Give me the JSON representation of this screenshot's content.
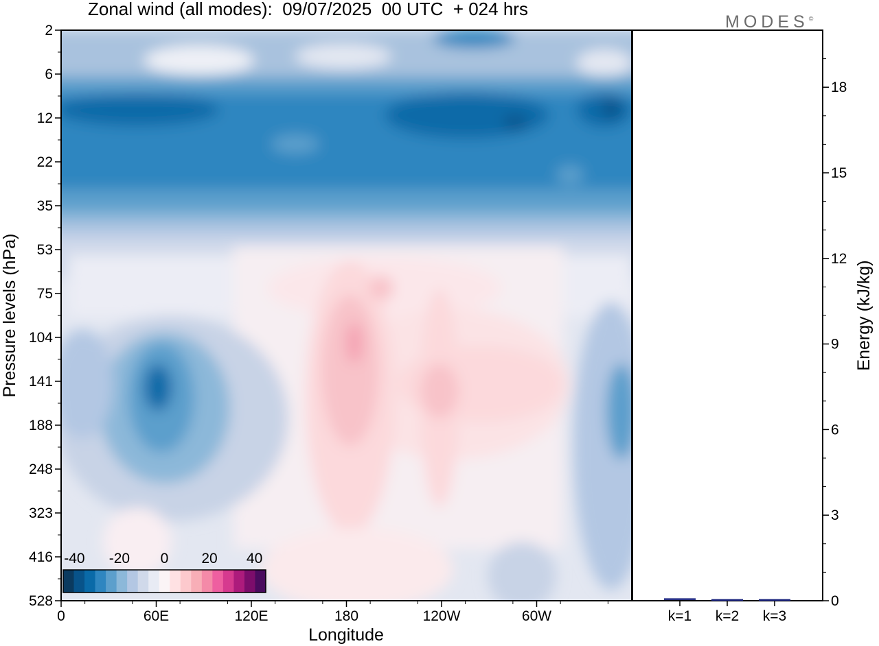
{
  "header": {
    "title": "Zonal wind (all modes):  09/07/2025  00 UTC  + 024 hrs",
    "logo": "MODES",
    "logo_mark": "©"
  },
  "colors": {
    "scale": [
      "#0b3a5f",
      "#08538a",
      "#0a6aa8",
      "#2f86c0",
      "#5c9fcc",
      "#8cb8d9",
      "#b3c7e3",
      "#d0d9ea",
      "#e8ebf4",
      "#fbf4f6",
      "#ffe1e3",
      "#fdc9cd",
      "#f8aeb7",
      "#f48aa8",
      "#ee5fa0",
      "#d63a8f",
      "#ad1b7c",
      "#7c0d6b",
      "#4a0b5e"
    ],
    "energy_bar": "#1a237e"
  },
  "chart_data": [
    {
      "type": "heatmap",
      "title": "Zonal wind (all modes):  09/07/2025  00 UTC  + 024 hrs",
      "xlabel": "Longitude",
      "ylabel": "Pressure levels (hPa)",
      "x_ticks": [
        "0",
        "60E",
        "120E",
        "180",
        "120W",
        "60W"
      ],
      "x_tick_values": [
        0,
        60,
        120,
        180,
        240,
        300
      ],
      "xlim": [
        0,
        360
      ],
      "y_ticks": [
        "2",
        "6",
        "12",
        "22",
        "35",
        "53",
        "75",
        "104",
        "141",
        "188",
        "248",
        "323",
        "416",
        "528"
      ],
      "colorbar": {
        "labels": [
          "-40",
          "-20",
          "0",
          "20",
          "40"
        ],
        "label_values": [
          -40,
          -20,
          0,
          20,
          40
        ],
        "range": [
          -45,
          45
        ],
        "step": 5
      },
      "features": [
        {
          "lon": 180,
          "level": 2,
          "value": -8
        },
        {
          "lon": 60,
          "level": 6,
          "value": -2
        },
        {
          "lon": 180,
          "level": 12,
          "value": -25
        },
        {
          "lon": 250,
          "level": 12,
          "value": -30
        },
        {
          "lon": 180,
          "level": 22,
          "value": -25
        },
        {
          "lon": 180,
          "level": 35,
          "value": -10
        },
        {
          "lon": 180,
          "level": 53,
          "value": 0
        },
        {
          "lon": 180,
          "level": 75,
          "value": 5
        },
        {
          "lon": 60,
          "level": 141,
          "value": -28
        },
        {
          "lon": 185,
          "level": 141,
          "value": 12
        },
        {
          "lon": 240,
          "level": 141,
          "value": 8
        },
        {
          "lon": 350,
          "level": 141,
          "value": -15
        },
        {
          "lon": 60,
          "level": 188,
          "value": -18
        },
        {
          "lon": 185,
          "level": 188,
          "value": 8
        },
        {
          "lon": 180,
          "level": 323,
          "value": 5
        },
        {
          "lon": 10,
          "level": 528,
          "value": -3
        }
      ]
    },
    {
      "type": "bar",
      "ylabel": "Energy (kJ/kg)",
      "categories": [
        "k=1",
        "k=2",
        "k=3"
      ],
      "values": [
        0.05,
        0.02,
        0.02
      ],
      "ylim": [
        0,
        20
      ],
      "y_ticks": [
        "0",
        "3",
        "6",
        "9",
        "12",
        "15",
        "18"
      ],
      "y_tick_values": [
        0,
        3,
        6,
        9,
        12,
        15,
        18
      ]
    }
  ]
}
